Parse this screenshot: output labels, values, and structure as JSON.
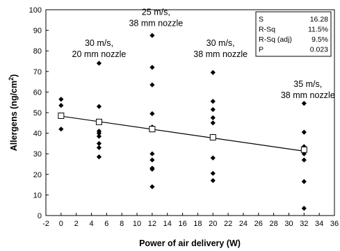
{
  "chart_data": {
    "type": "scatter",
    "xlabel": "Power of air delivery (W)",
    "ylabel": "Allergens (ng/cm",
    "ylabel_sup": "2",
    "ylabel_close": ")",
    "xlim": [
      -2,
      36
    ],
    "ylim": [
      0,
      100
    ],
    "xticks": [
      -2,
      0,
      2,
      4,
      6,
      8,
      10,
      12,
      14,
      16,
      18,
      20,
      22,
      24,
      26,
      28,
      30,
      32,
      34,
      36
    ],
    "yticks": [
      0,
      10,
      20,
      30,
      40,
      50,
      60,
      70,
      80,
      90,
      100
    ],
    "grid": false,
    "points": [
      {
        "x": 0,
        "y": 56.5
      },
      {
        "x": 0,
        "y": 53.5
      },
      {
        "x": 0,
        "y": 48.5
      },
      {
        "x": 0,
        "y": 42
      },
      {
        "x": 5,
        "y": 74
      },
      {
        "x": 5,
        "y": 53
      },
      {
        "x": 5,
        "y": 45.5
      },
      {
        "x": 5,
        "y": 41
      },
      {
        "x": 5,
        "y": 40
      },
      {
        "x": 5,
        "y": 38.5
      },
      {
        "x": 5,
        "y": 35
      },
      {
        "x": 5,
        "y": 33
      },
      {
        "x": 5,
        "y": 28.5
      },
      {
        "x": 12,
        "y": 87.5
      },
      {
        "x": 12,
        "y": 72
      },
      {
        "x": 12,
        "y": 63.5
      },
      {
        "x": 12,
        "y": 49.5
      },
      {
        "x": 12,
        "y": 43
      },
      {
        "x": 12,
        "y": 42
      },
      {
        "x": 12,
        "y": 30
      },
      {
        "x": 12,
        "y": 27
      },
      {
        "x": 12,
        "y": 23
      },
      {
        "x": 12,
        "y": 22.5
      },
      {
        "x": 12,
        "y": 14
      },
      {
        "x": 20,
        "y": 69.5
      },
      {
        "x": 20,
        "y": 55.5
      },
      {
        "x": 20,
        "y": 51.5
      },
      {
        "x": 20,
        "y": 47.5
      },
      {
        "x": 20,
        "y": 45
      },
      {
        "x": 20,
        "y": 38.5
      },
      {
        "x": 20,
        "y": 28
      },
      {
        "x": 20,
        "y": 20.5
      },
      {
        "x": 20,
        "y": 17
      },
      {
        "x": 32,
        "y": 54.5
      },
      {
        "x": 32,
        "y": 40.5
      },
      {
        "x": 32,
        "y": 33.5
      },
      {
        "x": 32,
        "y": 31.5
      },
      {
        "x": 32,
        "y": 30
      },
      {
        "x": 32,
        "y": 27
      },
      {
        "x": 32,
        "y": 16.5
      },
      {
        "x": 32,
        "y": 3.5
      }
    ],
    "means": [
      {
        "x": 0,
        "y": 48.5
      },
      {
        "x": 5,
        "y": 45.5
      },
      {
        "x": 12,
        "y": 42
      },
      {
        "x": 20,
        "y": 38
      },
      {
        "x": 32,
        "y": 32
      }
    ],
    "fit_line": {
      "x": [
        0,
        32
      ],
      "y": [
        48.3,
        31.3
      ]
    },
    "annotations": [
      {
        "id": "a1",
        "lines": [
          "30 m/s,",
          "20 mm nozzle"
        ],
        "x": 5,
        "y": 82.5
      },
      {
        "id": "a2",
        "lines": [
          "25 m/s,",
          "38 mm nozzle"
        ],
        "x": 12.5,
        "y": 97.5
      },
      {
        "id": "a3",
        "lines": [
          "30 m/s,",
          "38 mm nozzle"
        ],
        "x": 21,
        "y": 82.5
      },
      {
        "id": "a4",
        "lines": [
          "35 m/s,",
          "38 mm nozzle"
        ],
        "x": 32.5,
        "y": 62.5
      }
    ],
    "stats": [
      {
        "label": "S",
        "value": "16.28"
      },
      {
        "label": "R-Sq",
        "value": "11.5%"
      },
      {
        "label": "R-Sq (adj)",
        "value": "9.5%"
      },
      {
        "label": "P",
        "value": "0.023"
      }
    ]
  }
}
